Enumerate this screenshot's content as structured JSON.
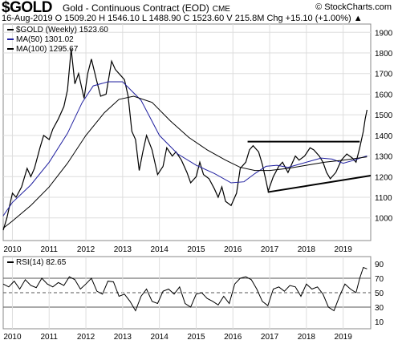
{
  "header": {
    "symbol": "$GOLD",
    "name": "Gold - Continuous Contract (EOD)",
    "exchange": "CME",
    "brand": "© StockCharts.com",
    "ohlc_line": "16-Aug-2019   O 1509.20   H 1546.10   L 1488.90   C 1523.60   V 215.8M   Chg +15.10 (+1.00%) ▲"
  },
  "chart_data": [
    {
      "type": "line",
      "panel": "price",
      "legend": [
        {
          "label": "$GOLD (Weekly) 1523.60",
          "color": "#000000"
        },
        {
          "label": "MA(50) 1301.02",
          "color": "#1f1f9f"
        },
        {
          "label": "MA(100) 1295.67",
          "color": "#000000"
        }
      ],
      "x_ticks": [
        "2010",
        "2011",
        "2012",
        "2013",
        "2014",
        "2015",
        "2016",
        "2017",
        "2018",
        "2019"
      ],
      "x_range": [
        2009.75,
        2019.75
      ],
      "y_ticks": [
        1000,
        1100,
        1200,
        1300,
        1400,
        1500,
        1600,
        1700,
        1800,
        1900
      ],
      "ylim": [
        890,
        1940
      ],
      "series": [
        {
          "name": "$GOLD (Weekly)",
          "color": "#000000",
          "x": [
            2009.75,
            2009.85,
            2010.0,
            2010.1,
            2010.25,
            2010.4,
            2010.5,
            2010.6,
            2010.75,
            2010.85,
            2011.0,
            2011.1,
            2011.25,
            2011.4,
            2011.5,
            2011.6,
            2011.7,
            2011.8,
            2011.95,
            2012.05,
            2012.15,
            2012.3,
            2012.4,
            2012.55,
            2012.7,
            2012.8,
            2012.95,
            2013.05,
            2013.15,
            2013.25,
            2013.35,
            2013.45,
            2013.55,
            2013.65,
            2013.8,
            2013.95,
            2014.1,
            2014.2,
            2014.35,
            2014.45,
            2014.6,
            2014.75,
            2014.85,
            2015.0,
            2015.1,
            2015.2,
            2015.35,
            2015.5,
            2015.6,
            2015.7,
            2015.8,
            2015.95,
            2016.1,
            2016.2,
            2016.35,
            2016.45,
            2016.55,
            2016.7,
            2016.8,
            2016.9,
            2016.96,
            2017.1,
            2017.25,
            2017.35,
            2017.5,
            2017.7,
            2017.8,
            2017.95,
            2018.1,
            2018.2,
            2018.35,
            2018.45,
            2018.55,
            2018.65,
            2018.8,
            2018.95,
            2019.1,
            2019.25,
            2019.35,
            2019.45,
            2019.55,
            2019.6,
            2019.65
          ],
          "values": [
            940,
            1000,
            1120,
            1100,
            1150,
            1240,
            1200,
            1240,
            1340,
            1400,
            1380,
            1430,
            1480,
            1540,
            1620,
            1820,
            1650,
            1700,
            1580,
            1700,
            1770,
            1660,
            1590,
            1600,
            1760,
            1720,
            1690,
            1670,
            1590,
            1420,
            1380,
            1230,
            1320,
            1400,
            1330,
            1210,
            1250,
            1340,
            1300,
            1320,
            1280,
            1220,
            1170,
            1200,
            1270,
            1210,
            1190,
            1140,
            1100,
            1150,
            1080,
            1060,
            1120,
            1240,
            1270,
            1330,
            1350,
            1320,
            1260,
            1180,
            1130,
            1200,
            1250,
            1270,
            1220,
            1300,
            1280,
            1300,
            1340,
            1330,
            1300,
            1270,
            1220,
            1190,
            1220,
            1280,
            1310,
            1290,
            1270,
            1340,
            1420,
            1480,
            1524
          ]
        },
        {
          "name": "MA(50)",
          "color": "#1f1f9f",
          "x": [
            2009.75,
            2010.0,
            2010.5,
            2011.0,
            2011.5,
            2011.9,
            2012.2,
            2012.6,
            2013.0,
            2013.5,
            2014.0,
            2014.5,
            2015.0,
            2015.5,
            2015.95,
            2016.3,
            2016.6,
            2016.9,
            2017.2,
            2017.5,
            2017.8,
            2018.1,
            2018.4,
            2018.7,
            2019.0,
            2019.3,
            2019.65
          ],
          "values": [
            1010,
            1075,
            1160,
            1270,
            1410,
            1560,
            1640,
            1660,
            1660,
            1570,
            1400,
            1310,
            1255,
            1215,
            1170,
            1175,
            1215,
            1250,
            1255,
            1245,
            1260,
            1275,
            1290,
            1285,
            1265,
            1280,
            1301
          ]
        },
        {
          "name": "MA(100)",
          "color": "#000000",
          "x": [
            2009.75,
            2010.0,
            2010.5,
            2011.0,
            2011.5,
            2012.0,
            2012.5,
            2012.9,
            2013.3,
            2013.8,
            2014.3,
            2014.8,
            2015.3,
            2015.8,
            2016.2,
            2016.6,
            2017.0,
            2017.5,
            2018.0,
            2018.5,
            2019.0,
            2019.65
          ],
          "values": [
            950,
            985,
            1060,
            1150,
            1265,
            1400,
            1510,
            1575,
            1590,
            1560,
            1470,
            1390,
            1330,
            1280,
            1245,
            1230,
            1230,
            1240,
            1255,
            1270,
            1280,
            1296
          ]
        }
      ],
      "trendlines": [
        {
          "x": [
            2016.4,
            2019.45
          ],
          "values": [
            1370,
            1370
          ]
        },
        {
          "x": [
            2016.95,
            2019.75
          ],
          "values": [
            1125,
            1205
          ]
        }
      ]
    },
    {
      "type": "line",
      "panel": "rsi",
      "legend": [
        {
          "label": "RSI(14) 82.65",
          "color": "#000000"
        }
      ],
      "x_ticks": [
        "2010",
        "2011",
        "2012",
        "2013",
        "2014",
        "2015",
        "2016",
        "2017",
        "2018",
        "2019"
      ],
      "y_ticks": [
        10,
        30,
        50,
        70,
        90
      ],
      "ylim": [
        0,
        100
      ],
      "reference_lines": [
        30,
        50,
        70
      ],
      "series": [
        {
          "name": "RSI(14)",
          "x": [
            2009.75,
            2009.9,
            2010.05,
            2010.2,
            2010.35,
            2010.5,
            2010.65,
            2010.8,
            2010.95,
            2011.1,
            2011.25,
            2011.4,
            2011.55,
            2011.7,
            2011.85,
            2012.0,
            2012.15,
            2012.3,
            2012.45,
            2012.6,
            2012.75,
            2012.9,
            2013.05,
            2013.2,
            2013.35,
            2013.5,
            2013.65,
            2013.8,
            2013.95,
            2014.1,
            2014.25,
            2014.4,
            2014.55,
            2014.7,
            2014.85,
            2015.0,
            2015.15,
            2015.3,
            2015.45,
            2015.6,
            2015.75,
            2015.9,
            2016.05,
            2016.2,
            2016.35,
            2016.5,
            2016.65,
            2016.8,
            2016.95,
            2017.1,
            2017.25,
            2017.4,
            2017.55,
            2017.7,
            2017.85,
            2018.0,
            2018.15,
            2018.3,
            2018.45,
            2018.6,
            2018.75,
            2018.9,
            2019.05,
            2019.2,
            2019.35,
            2019.45,
            2019.55,
            2019.65
          ],
          "values": [
            62,
            58,
            66,
            55,
            68,
            60,
            57,
            70,
            62,
            58,
            64,
            60,
            72,
            68,
            55,
            62,
            70,
            52,
            48,
            66,
            65,
            45,
            48,
            38,
            25,
            45,
            55,
            38,
            35,
            52,
            55,
            48,
            58,
            35,
            30,
            48,
            50,
            42,
            38,
            33,
            45,
            35,
            62,
            70,
            72,
            68,
            55,
            38,
            32,
            55,
            58,
            52,
            60,
            58,
            45,
            62,
            55,
            58,
            48,
            30,
            25,
            45,
            62,
            55,
            50,
            70,
            85,
            83
          ]
        }
      ]
    }
  ]
}
